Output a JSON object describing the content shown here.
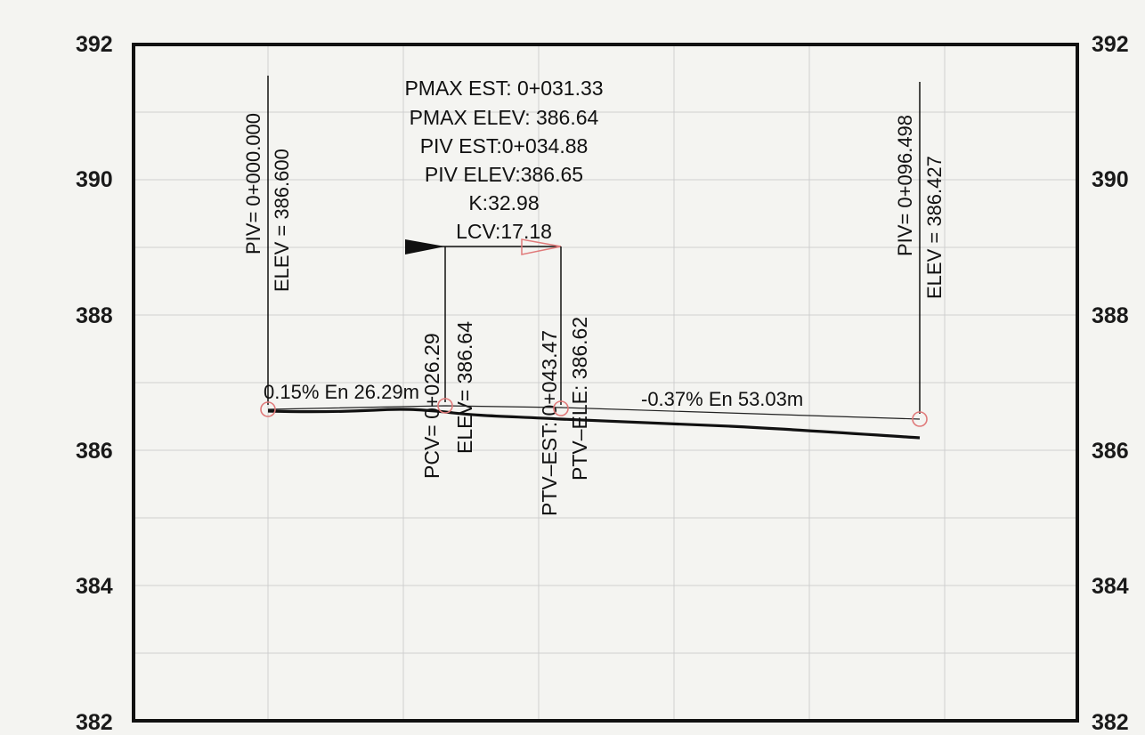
{
  "axis": {
    "ylim": [
      382,
      392
    ],
    "ticks": [
      "392",
      "390",
      "388",
      "386",
      "384",
      "382"
    ]
  },
  "curve_info": {
    "lines": [
      "PMAX  EST:  0+031.33",
      "PMAX  ELEV:  386.64",
      "PIV  EST:0+034.88",
      "PIV  ELEV:386.65",
      "K:32.98",
      "LCV:17.18"
    ]
  },
  "piv_start": {
    "station": "PIV= 0+000.000",
    "elev": "ELEV =  386.600",
    "elev_value": 386.6
  },
  "piv_end": {
    "station": "PIV= 0+096.498",
    "elev": "ELEV =  386.427",
    "elev_value": 386.427
  },
  "pcv": {
    "station": "PCV= 0+026.29",
    "elev": "ELEV=  386.64",
    "elev_value": 386.64
  },
  "ptv": {
    "station": "PTV–EST:  0+043.47",
    "elev": "PTV–ELE:  386.62",
    "elev_value": 386.62
  },
  "grades": {
    "g1": "0.15% En 26.29m",
    "g2": "-0.37% En 53.03m"
  },
  "colors": {
    "marker": "#e07a7a",
    "line": "#111111",
    "grid": "#cfcfcf"
  }
}
